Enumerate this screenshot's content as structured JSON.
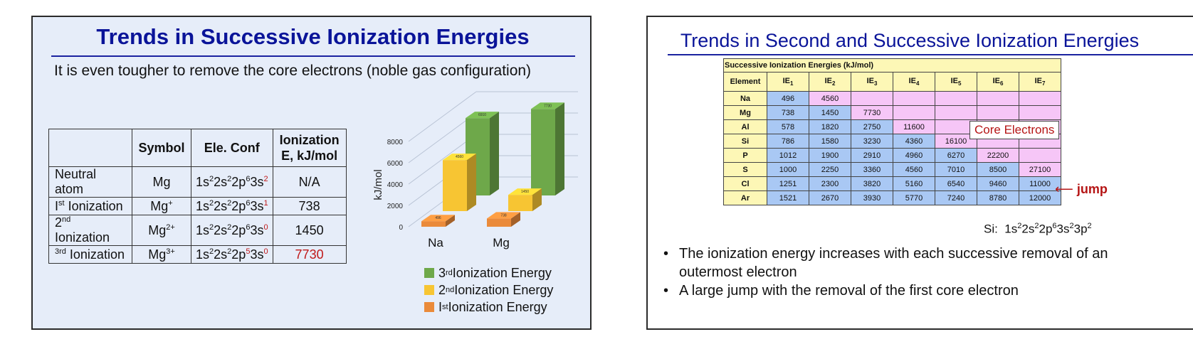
{
  "slide1": {
    "title": "Trends in Successive Ionization Energies",
    "subtitle": "It is even tougher to remove the core electrons (noble gas configuration)",
    "table": {
      "headers": [
        "",
        "Symbol",
        "Ele. Conf",
        "Ionization",
        "E, kJ/mol"
      ],
      "rows": [
        {
          "label": "Neutral atom",
          "symbol": "Mg",
          "ion_sup": "",
          "value": "N/A"
        },
        {
          "label_pre": "I",
          "label_sup": "st",
          "label_post": " Ionization",
          "symbol": "Mg",
          "ion_sup": "+",
          "value": "738"
        },
        {
          "label_pre": "2",
          "label_sup": "nd",
          "label_post": " Ionization",
          "symbol": "Mg",
          "ion_sup": "2+",
          "value": "1450"
        },
        {
          "label_pre": "",
          "label_sup": "3rd",
          "label_post": " Ionization",
          "symbol": "Mg",
          "ion_sup": "3+",
          "value": "7730"
        }
      ],
      "configs": [
        {
          "a": "1s",
          "a1": "2",
          "b": "2s",
          "b1": "2",
          "c": "2p",
          "c1": "6",
          "d": "3s",
          "d1": "2"
        },
        {
          "a": "1s",
          "a1": "2",
          "b": "2s",
          "b1": "2",
          "c": "2p",
          "c1": "6",
          "d": "3s",
          "d1": "1"
        },
        {
          "a": "1s",
          "a1": "2",
          "b": "2s",
          "b1": "2",
          "c": "2p",
          "c1": "6",
          "d": "3s",
          "d1": "0"
        },
        {
          "a": "1s",
          "a1": "2",
          "b": "2s",
          "b1": "2",
          "c": "2p",
          "c1": "5",
          "d": "3s",
          "d1": "0"
        }
      ]
    },
    "legend": [
      {
        "pre": "3",
        "sup": "rd",
        "post": " Ionization Energy",
        "color": "#6ea84a"
      },
      {
        "pre": "2",
        "sup": "nd",
        "post": " Ionization Energy",
        "color": "#f7c533"
      },
      {
        "pre": "I",
        "sup": "st",
        "post": " Ionization Energy",
        "color": "#ea8a3a"
      }
    ]
  },
  "chart_data": {
    "type": "bar",
    "title": "",
    "xlabel": "",
    "ylabel": "kJ/mol",
    "ylim": [
      0,
      8000
    ],
    "yticks": [
      "0",
      "2000",
      "4000",
      "6000",
      "8000"
    ],
    "categories": [
      "Na",
      "Mg"
    ],
    "series": [
      {
        "name": "1st Ionization Energy",
        "values": [
          496,
          738
        ],
        "color": "#ea8a3a"
      },
      {
        "name": "2nd Ionization Energy",
        "values": [
          4560,
          1450
        ],
        "color": "#f7c533"
      },
      {
        "name": "3rd Ionization Energy",
        "values": [
          6910,
          7730
        ],
        "color": "#6ea84a"
      }
    ],
    "data_labels": [
      "496",
      "4560",
      "6910",
      "738",
      "1450",
      "7730"
    ]
  },
  "slide2": {
    "title": "Trends in Second and Successive Ionization Energies",
    "table_caption": "Successive Ionization Energies (kJ/mol)",
    "header": [
      "Element",
      "IE1",
      "IE2",
      "IE3",
      "IE4",
      "IE5",
      "IE6",
      "IE7"
    ],
    "rows": [
      {
        "el": "Na",
        "v": [
          "496",
          "4560",
          "",
          "",
          "",
          "",
          ""
        ],
        "blue": 1
      },
      {
        "el": "Mg",
        "v": [
          "738",
          "1450",
          "7730",
          "",
          "",
          "",
          ""
        ],
        "blue": 2
      },
      {
        "el": "Al",
        "v": [
          "578",
          "1820",
          "2750",
          "11600",
          "",
          "",
          ""
        ],
        "blue": 3
      },
      {
        "el": "Si",
        "v": [
          "786",
          "1580",
          "3230",
          "4360",
          "16100",
          "",
          ""
        ],
        "blue": 4
      },
      {
        "el": "P",
        "v": [
          "1012",
          "1900",
          "2910",
          "4960",
          "6270",
          "22200",
          ""
        ],
        "blue": 5
      },
      {
        "el": "S",
        "v": [
          "1000",
          "2250",
          "3360",
          "4560",
          "7010",
          "8500",
          "27100"
        ],
        "blue": 6
      },
      {
        "el": "Cl",
        "v": [
          "1251",
          "2300",
          "3820",
          "5160",
          "6540",
          "9460",
          "11000"
        ],
        "blue": 7
      },
      {
        "el": "Ar",
        "v": [
          "1521",
          "2670",
          "3930",
          "5770",
          "7240",
          "8780",
          "12000"
        ],
        "blue": 7
      }
    ],
    "core_label": "Core Electrons",
    "jump_label": "jump",
    "si_prefix": "Si:",
    "si_config": [
      "1s",
      "2",
      "2s",
      "2",
      "2p",
      "6",
      "3s",
      "2",
      "3p",
      "2"
    ],
    "bullets": [
      "The ionization energy increases with each successive removal of an outermost electron",
      "A large jump with the removal of the first core electron"
    ]
  }
}
